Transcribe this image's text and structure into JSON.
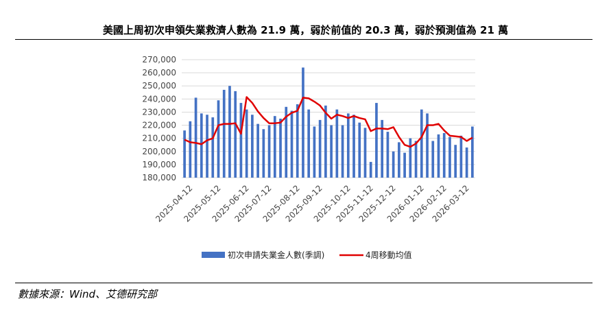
{
  "header": {
    "title": "美國上周初次申領失業救濟人數為 21.9 萬，弱於前值的 20.3 萬，弱於預測值為 21 萬"
  },
  "footer": {
    "source": "數據來源：Wind、艾德研究部"
  },
  "chart_data": {
    "type": "bar",
    "ylim": [
      180000,
      270000
    ],
    "yticks": [
      180000,
      190000,
      200000,
      210000,
      220000,
      230000,
      240000,
      250000,
      260000,
      270000
    ],
    "ytick_labels": [
      "180,000",
      "190,000",
      "200,000",
      "210,000",
      "220,000",
      "230,000",
      "240,000",
      "250,000",
      "260,000",
      "270,000"
    ],
    "xtick_labels": [
      "2025-04-12",
      "2025-05-12",
      "2025-06-12",
      "2025-07-12",
      "2025-08-12",
      "2025-09-12",
      "2025-10-12",
      "2025-11-12",
      "2025-12-12",
      "2026-01-12",
      "2026-02-12",
      "2026-03-12"
    ],
    "xtick_positions": [
      1,
      6,
      11,
      15,
      20,
      24,
      29,
      33,
      37,
      42,
      46,
      50
    ],
    "grid": true,
    "legend_position": "bottom",
    "colors": {
      "bar": "#4472C4",
      "line": "#E00000",
      "grid": "#D9D9D9"
    },
    "series": [
      {
        "name": "初次申請失業金人數(季調)",
        "type": "bar",
        "values": [
          216000,
          223000,
          241000,
          229000,
          228000,
          226000,
          239000,
          247000,
          250000,
          246000,
          237000,
          232000,
          228000,
          221000,
          217000,
          220000,
          227000,
          225000,
          234000,
          231000,
          236000,
          264000,
          232000,
          219000,
          224000,
          235000,
          220000,
          232000,
          220000,
          229000,
          228000,
          222000,
          218000,
          192000,
          237000,
          224000,
          215000,
          200000,
          207000,
          199000,
          210000,
          208000,
          232000,
          229000,
          208000,
          213000,
          214000,
          211000,
          205000,
          212000,
          203000,
          219000
        ]
      },
      {
        "name": "4周移動均值",
        "type": "line",
        "values": [
          209000,
          207000,
          206500,
          205500,
          208500,
          210000,
          220000,
          221000,
          221000,
          221500,
          213500,
          241500,
          237000,
          230500,
          225500,
          221500,
          221500,
          222000,
          226500,
          229500,
          231000,
          241000,
          240500,
          238000,
          235000,
          229500,
          225000,
          228000,
          227000,
          225500,
          227000,
          225500,
          224500,
          215500,
          217500,
          217500,
          217000,
          218500,
          211000,
          205000,
          203500,
          206000,
          211000,
          220000,
          220000,
          221000,
          216000,
          212000,
          211500,
          211000,
          208000,
          210500
        ]
      }
    ]
  }
}
